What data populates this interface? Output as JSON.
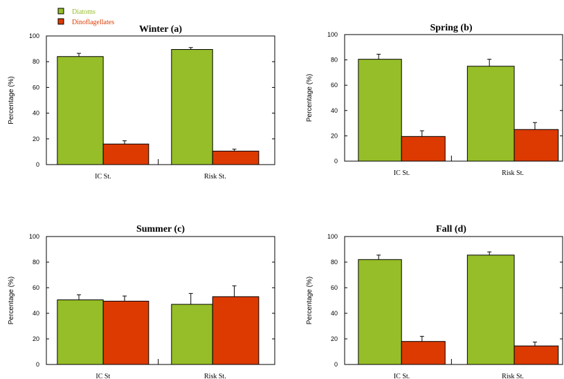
{
  "legend": {
    "items": [
      {
        "label": "Diatoms",
        "color": "#96BE28"
      },
      {
        "label": "Dinoflagellates",
        "color": "#DC3A00"
      }
    ]
  },
  "chart_data": [
    {
      "type": "bar",
      "title": "Winter (a)",
      "ylabel": "Percentage (%)",
      "xlabel": "",
      "ylim": [
        0,
        100
      ],
      "yticks": [
        0,
        20,
        40,
        60,
        80,
        100
      ],
      "categories": [
        "IC St.",
        "Risk St."
      ],
      "series": [
        {
          "name": "Diatoms",
          "values": [
            84,
            89.5
          ],
          "errors": [
            2.5,
            1.5
          ]
        },
        {
          "name": "Dinoflagellates",
          "values": [
            16,
            10.5
          ],
          "errors": [
            2.5,
            1.5
          ]
        }
      ]
    },
    {
      "type": "bar",
      "title": "Spring (b)",
      "ylabel": "Percentage (%)",
      "xlabel": "",
      "ylim": [
        0,
        100
      ],
      "yticks": [
        0,
        20,
        40,
        60,
        80,
        100
      ],
      "categories": [
        "IC St.",
        "Risk St."
      ],
      "series": [
        {
          "name": "Diatoms",
          "values": [
            80.5,
            75
          ],
          "errors": [
            4,
            5.5
          ]
        },
        {
          "name": "Dinoflagellates",
          "values": [
            19.5,
            25
          ],
          "errors": [
            4.5,
            5.5
          ]
        }
      ]
    },
    {
      "type": "bar",
      "title": "Summer (c)",
      "ylabel": "Percentage (%)",
      "xlabel": "",
      "ylim": [
        0,
        100
      ],
      "yticks": [
        0,
        20,
        40,
        60,
        80,
        100
      ],
      "categories": [
        "IC St",
        "Risk St."
      ],
      "series": [
        {
          "name": "Diatoms",
          "values": [
            50.5,
            47
          ],
          "errors": [
            4,
            8.5
          ]
        },
        {
          "name": "Dinoflagellates",
          "values": [
            49.5,
            53
          ],
          "errors": [
            4,
            8.5
          ]
        }
      ]
    },
    {
      "type": "bar",
      "title": "Fall (d)",
      "ylabel": "Percentage (%)",
      "xlabel": "",
      "ylim": [
        0,
        100
      ],
      "yticks": [
        0,
        20,
        40,
        60,
        80,
        100
      ],
      "categories": [
        "IC St.",
        "Risk St."
      ],
      "series": [
        {
          "name": "Diatoms",
          "values": [
            82,
            85.5
          ],
          "errors": [
            3.5,
            2.5
          ]
        },
        {
          "name": "Dinoflagellates",
          "values": [
            18,
            14.5
          ],
          "errors": [
            4,
            3
          ]
        }
      ]
    }
  ]
}
